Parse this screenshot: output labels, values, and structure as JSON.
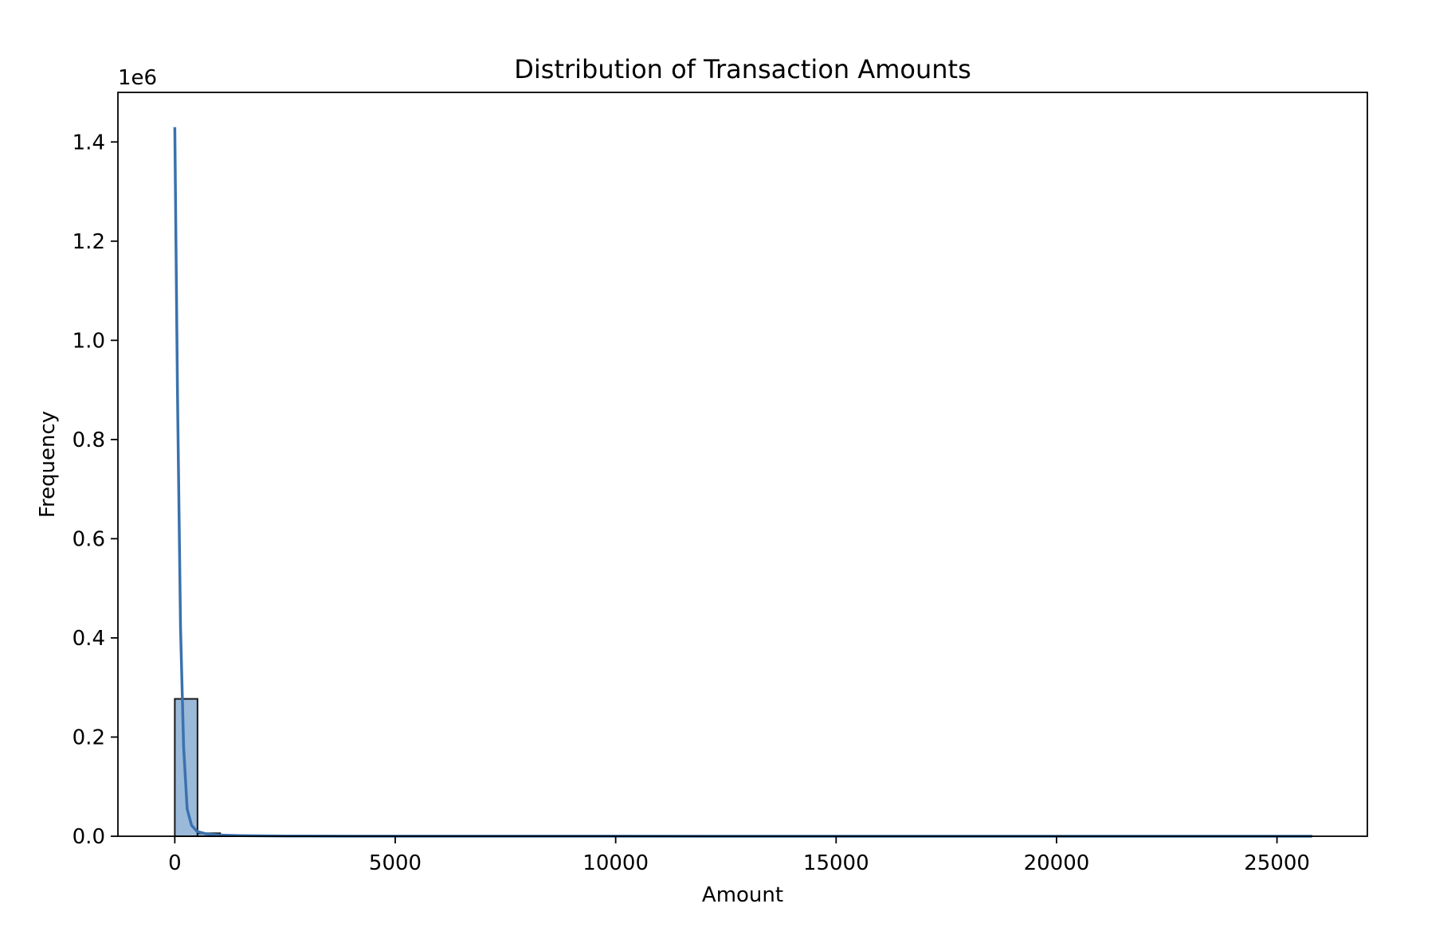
{
  "chart_data": {
    "type": "bar",
    "subtype": "histogram-with-kde",
    "title": "Distribution of Transaction Amounts",
    "xlabel": "Amount",
    "ylabel": "Frequency",
    "y_offset_label": "1e6",
    "xlim": [
      -1290,
      27050
    ],
    "ylim": [
      0,
      1500000
    ],
    "xticks": [
      0,
      5000,
      10000,
      15000,
      20000,
      25000
    ],
    "xtick_labels": [
      "0",
      "5000",
      "10000",
      "15000",
      "20000",
      "25000"
    ],
    "yticks": [
      0,
      200000,
      400000,
      600000,
      800000,
      1000000,
      1200000,
      1400000
    ],
    "ytick_labels": [
      "0.0",
      "0.2",
      "0.4",
      "0.6",
      "0.8",
      "1.0",
      "1.2",
      "1.4"
    ],
    "grid": false,
    "colors": {
      "bar_fill": "#9bb9d9",
      "bar_edge": "#1a1a1a",
      "kde_line": "#3a72ae"
    },
    "histogram": {
      "bin_width": 515,
      "bins": [
        {
          "x_start": 0,
          "count": 277000
        },
        {
          "x_start": 515,
          "count": 6000
        },
        {
          "x_start": 1030,
          "count": 900
        },
        {
          "x_start": 1545,
          "count": 250
        },
        {
          "x_start": 2060,
          "count": 100
        },
        {
          "x_start": 2575,
          "count": 40
        },
        {
          "x_start": 3090,
          "count": 20
        }
      ]
    },
    "kde": {
      "x": [
        0,
        60,
        130,
        200,
        280,
        380,
        500,
        700,
        1000,
        1500,
        2500,
        4000,
        7000,
        12000,
        18000,
        25800
      ],
      "y": [
        1430000,
        900000,
        420000,
        180000,
        55000,
        22000,
        10000,
        5000,
        2500,
        1200,
        500,
        250,
        150,
        80,
        40,
        20
      ]
    }
  }
}
